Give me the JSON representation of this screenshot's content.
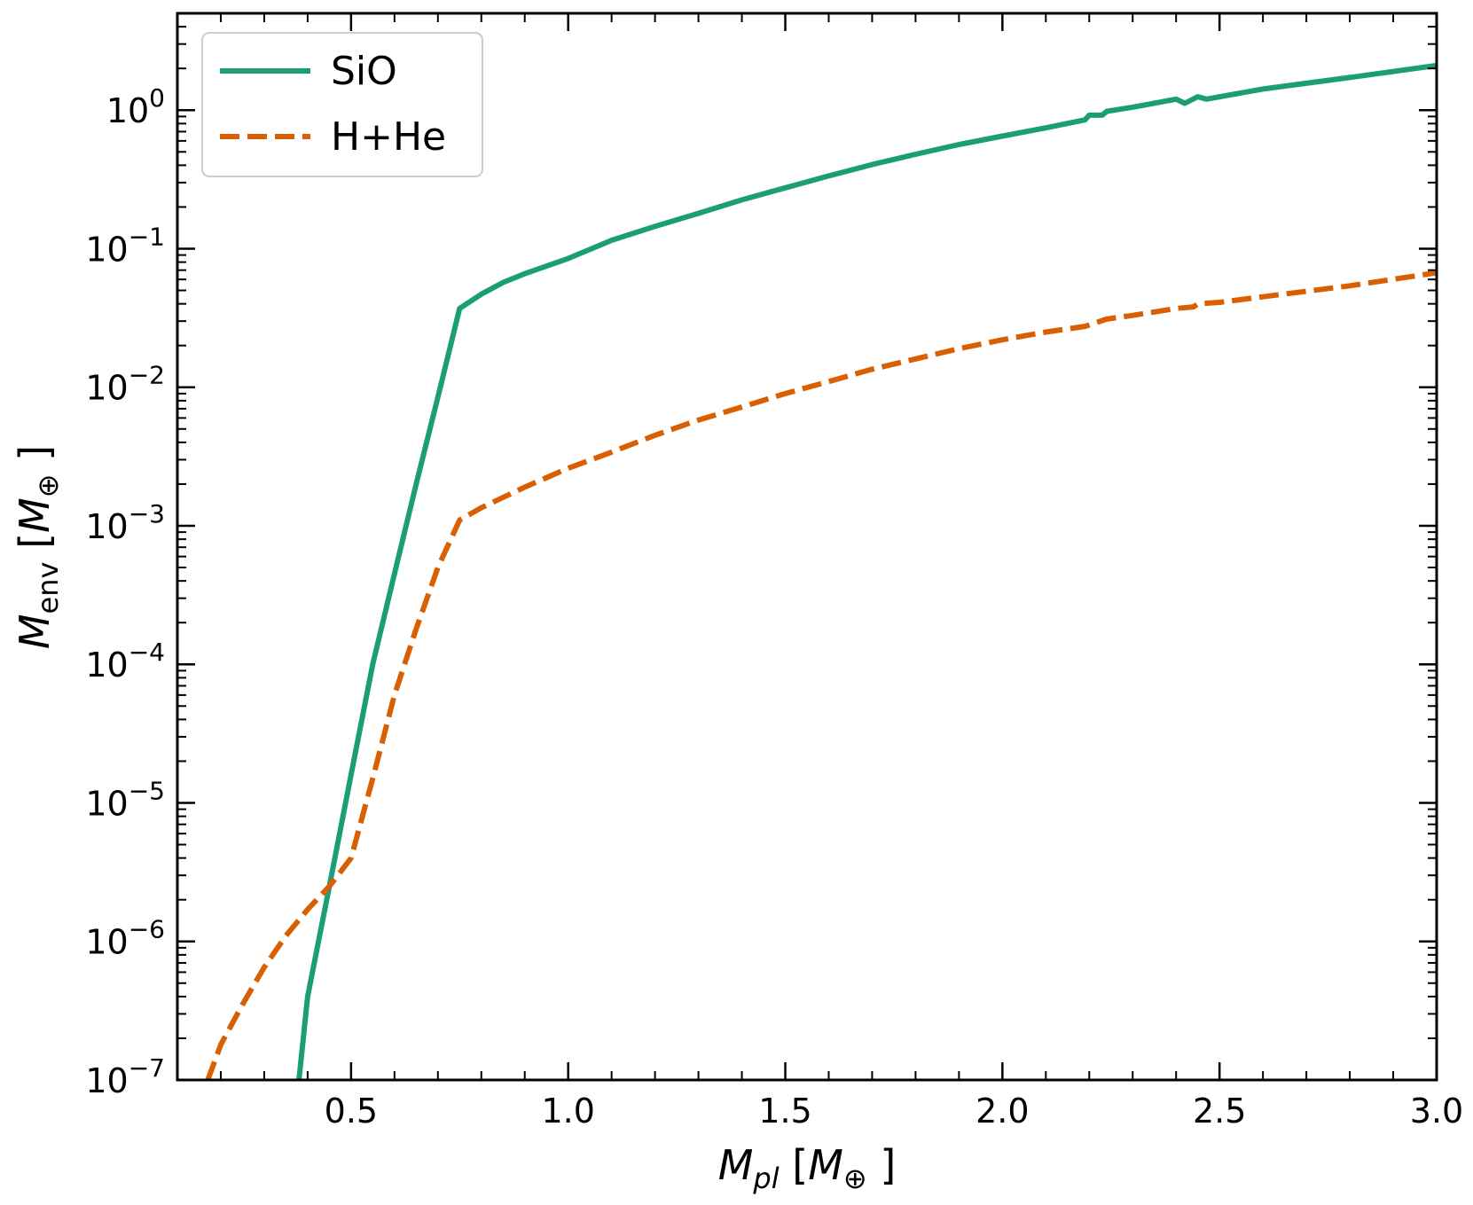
{
  "chart_data": {
    "type": "line",
    "xlabel": {
      "main": "M",
      "sub": "pl",
      "unit_open": " [",
      "unit_main": "M",
      "unit_sub": "⊕",
      "unit_close": " ]"
    },
    "ylabel": {
      "main": "M",
      "sub": "env",
      "unit_open": " [",
      "unit_main": "M",
      "unit_sub": "⊕",
      "unit_close": " ]"
    },
    "xlim": [
      0.1,
      3.0
    ],
    "ylim": [
      1e-07,
      5
    ],
    "yscale": "log",
    "x_ticks": [
      0.5,
      1.0,
      1.5,
      2.0,
      2.5,
      3.0
    ],
    "x_tick_labels": [
      "0.5",
      "1.0",
      "1.5",
      "2.0",
      "2.5",
      "3.0"
    ],
    "y_ticks": [
      {
        "exp": -7,
        "label_base": "10",
        "label_exp": "−7"
      },
      {
        "exp": -6,
        "label_base": "10",
        "label_exp": "−6"
      },
      {
        "exp": -5,
        "label_base": "10",
        "label_exp": "−5"
      },
      {
        "exp": -4,
        "label_base": "10",
        "label_exp": "−4"
      },
      {
        "exp": -3,
        "label_base": "10",
        "label_exp": "−3"
      },
      {
        "exp": -2,
        "label_base": "10",
        "label_exp": "−2"
      },
      {
        "exp": -1,
        "label_base": "10",
        "label_exp": "−1"
      },
      {
        "exp": 0,
        "label_base": "10",
        "label_exp": "0"
      }
    ],
    "legend_position": "top-left",
    "series": [
      {
        "name": "SiO",
        "color": "#1b9e77",
        "style": "solid",
        "points": [
          [
            0.38,
            1e-07
          ],
          [
            0.4,
            4e-07
          ],
          [
            0.45,
            2.5e-06
          ],
          [
            0.5,
            1.6e-05
          ],
          [
            0.55,
            0.0001
          ],
          [
            0.6,
            0.00045
          ],
          [
            0.65,
            0.002
          ],
          [
            0.7,
            0.0085
          ],
          [
            0.75,
            0.037
          ],
          [
            0.8,
            0.047
          ],
          [
            0.85,
            0.057
          ],
          [
            0.9,
            0.066
          ],
          [
            1.0,
            0.085
          ],
          [
            1.1,
            0.115
          ],
          [
            1.2,
            0.145
          ],
          [
            1.3,
            0.18
          ],
          [
            1.4,
            0.225
          ],
          [
            1.5,
            0.275
          ],
          [
            1.6,
            0.335
          ],
          [
            1.7,
            0.405
          ],
          [
            1.8,
            0.48
          ],
          [
            1.9,
            0.565
          ],
          [
            2.0,
            0.65
          ],
          [
            2.1,
            0.745
          ],
          [
            2.19,
            0.85
          ],
          [
            2.2,
            0.92
          ],
          [
            2.23,
            0.92
          ],
          [
            2.24,
            0.98
          ],
          [
            2.3,
            1.05
          ],
          [
            2.4,
            1.2
          ],
          [
            2.42,
            1.12
          ],
          [
            2.45,
            1.25
          ],
          [
            2.47,
            1.2
          ],
          [
            2.6,
            1.42
          ],
          [
            2.8,
            1.72
          ],
          [
            3.0,
            2.1
          ]
        ]
      },
      {
        "name": "H+He",
        "color": "#d95f02",
        "style": "dashed",
        "points": [
          [
            0.17,
            1e-07
          ],
          [
            0.2,
            1.8e-07
          ],
          [
            0.25,
            3.5e-07
          ],
          [
            0.3,
            6.5e-07
          ],
          [
            0.35,
            1.1e-06
          ],
          [
            0.4,
            1.7e-06
          ],
          [
            0.45,
            2.5e-06
          ],
          [
            0.5,
            4e-06
          ],
          [
            0.55,
            1.5e-05
          ],
          [
            0.6,
            6e-05
          ],
          [
            0.65,
            0.00018
          ],
          [
            0.7,
            0.0005
          ],
          [
            0.75,
            0.0011
          ],
          [
            0.8,
            0.00135
          ],
          [
            0.9,
            0.0019
          ],
          [
            1.0,
            0.0026
          ],
          [
            1.1,
            0.0034
          ],
          [
            1.2,
            0.0045
          ],
          [
            1.3,
            0.0058
          ],
          [
            1.4,
            0.0072
          ],
          [
            1.5,
            0.009
          ],
          [
            1.6,
            0.011
          ],
          [
            1.7,
            0.0135
          ],
          [
            1.8,
            0.016
          ],
          [
            1.9,
            0.019
          ],
          [
            2.0,
            0.022
          ],
          [
            2.1,
            0.025
          ],
          [
            2.19,
            0.0275
          ],
          [
            2.24,
            0.031
          ],
          [
            2.3,
            0.033
          ],
          [
            2.4,
            0.037
          ],
          [
            2.44,
            0.038
          ],
          [
            2.45,
            0.04
          ],
          [
            2.5,
            0.041
          ],
          [
            2.6,
            0.045
          ],
          [
            2.8,
            0.054
          ],
          [
            3.0,
            0.067
          ]
        ]
      }
    ]
  }
}
